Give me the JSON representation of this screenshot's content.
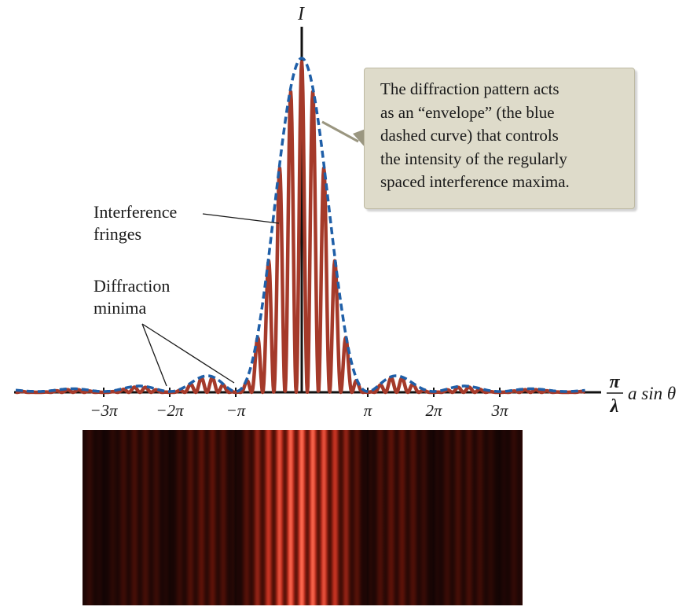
{
  "diagram": {
    "y_axis_label": "I",
    "x_axis_label": {
      "numerator": "π",
      "denominator": "λ",
      "expression": "a sin θ"
    },
    "x_ticks": [
      "−3π",
      "−2π",
      "−π",
      "π",
      "2π",
      "3π"
    ],
    "x_tick_values": [
      -3,
      -2,
      -1,
      1,
      2,
      3
    ],
    "labels": {
      "interference_line1": "Interference",
      "interference_line2": "fringes",
      "diffraction_line1": "Diffraction",
      "diffraction_line2": "minima"
    },
    "callout_lines": [
      "The diffraction pattern acts",
      "as an “envelope” (the blue",
      "dashed curve) that controls",
      "the intensity of the regularly",
      "spaced interference maxima."
    ],
    "colors": {
      "envelope": "#1f5fa8",
      "fringes": "#a53a2a",
      "axis": "#111111",
      "callout_bg": "#dedbca",
      "leader": "#9a9680"
    },
    "fringe_image": {
      "type": "interference-diffraction-photo",
      "colormap": [
        "#120404",
        "#5a1208",
        "#c03020",
        "#ff6a50"
      ]
    }
  }
}
